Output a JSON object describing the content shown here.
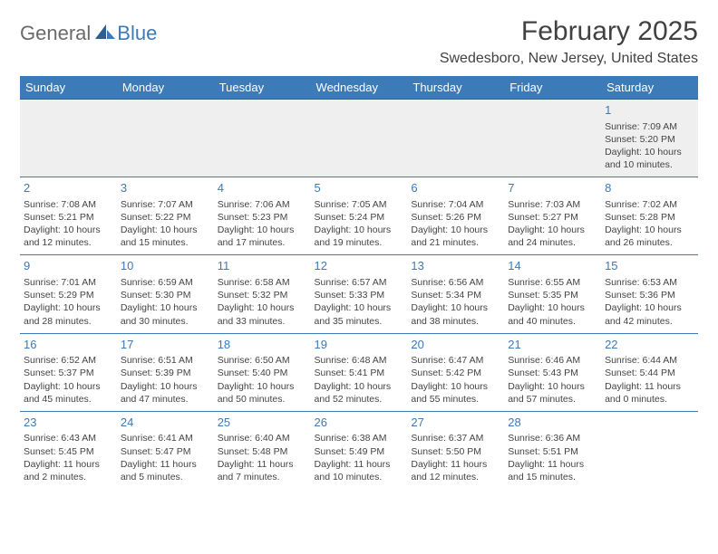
{
  "brand": {
    "part1": "General",
    "part2": "Blue"
  },
  "title": "February 2025",
  "location": "Swedesboro, New Jersey, United States",
  "colors": {
    "header_bg": "#3d7ab8",
    "header_text": "#ffffff",
    "daynum": "#3d7ab8",
    "body_text": "#444444",
    "row_border": "#3d7ab8",
    "first_row_bg": "#efefef",
    "page_bg": "#ffffff"
  },
  "weekdays": [
    "Sunday",
    "Monday",
    "Tuesday",
    "Wednesday",
    "Thursday",
    "Friday",
    "Saturday"
  ],
  "weeks": [
    [
      null,
      null,
      null,
      null,
      null,
      null,
      {
        "n": "1",
        "sunrise": "Sunrise: 7:09 AM",
        "sunset": "Sunset: 5:20 PM",
        "daylight": "Daylight: 10 hours and 10 minutes."
      }
    ],
    [
      {
        "n": "2",
        "sunrise": "Sunrise: 7:08 AM",
        "sunset": "Sunset: 5:21 PM",
        "daylight": "Daylight: 10 hours and 12 minutes."
      },
      {
        "n": "3",
        "sunrise": "Sunrise: 7:07 AM",
        "sunset": "Sunset: 5:22 PM",
        "daylight": "Daylight: 10 hours and 15 minutes."
      },
      {
        "n": "4",
        "sunrise": "Sunrise: 7:06 AM",
        "sunset": "Sunset: 5:23 PM",
        "daylight": "Daylight: 10 hours and 17 minutes."
      },
      {
        "n": "5",
        "sunrise": "Sunrise: 7:05 AM",
        "sunset": "Sunset: 5:24 PM",
        "daylight": "Daylight: 10 hours and 19 minutes."
      },
      {
        "n": "6",
        "sunrise": "Sunrise: 7:04 AM",
        "sunset": "Sunset: 5:26 PM",
        "daylight": "Daylight: 10 hours and 21 minutes."
      },
      {
        "n": "7",
        "sunrise": "Sunrise: 7:03 AM",
        "sunset": "Sunset: 5:27 PM",
        "daylight": "Daylight: 10 hours and 24 minutes."
      },
      {
        "n": "8",
        "sunrise": "Sunrise: 7:02 AM",
        "sunset": "Sunset: 5:28 PM",
        "daylight": "Daylight: 10 hours and 26 minutes."
      }
    ],
    [
      {
        "n": "9",
        "sunrise": "Sunrise: 7:01 AM",
        "sunset": "Sunset: 5:29 PM",
        "daylight": "Daylight: 10 hours and 28 minutes."
      },
      {
        "n": "10",
        "sunrise": "Sunrise: 6:59 AM",
        "sunset": "Sunset: 5:30 PM",
        "daylight": "Daylight: 10 hours and 30 minutes."
      },
      {
        "n": "11",
        "sunrise": "Sunrise: 6:58 AM",
        "sunset": "Sunset: 5:32 PM",
        "daylight": "Daylight: 10 hours and 33 minutes."
      },
      {
        "n": "12",
        "sunrise": "Sunrise: 6:57 AM",
        "sunset": "Sunset: 5:33 PM",
        "daylight": "Daylight: 10 hours and 35 minutes."
      },
      {
        "n": "13",
        "sunrise": "Sunrise: 6:56 AM",
        "sunset": "Sunset: 5:34 PM",
        "daylight": "Daylight: 10 hours and 38 minutes."
      },
      {
        "n": "14",
        "sunrise": "Sunrise: 6:55 AM",
        "sunset": "Sunset: 5:35 PM",
        "daylight": "Daylight: 10 hours and 40 minutes."
      },
      {
        "n": "15",
        "sunrise": "Sunrise: 6:53 AM",
        "sunset": "Sunset: 5:36 PM",
        "daylight": "Daylight: 10 hours and 42 minutes."
      }
    ],
    [
      {
        "n": "16",
        "sunrise": "Sunrise: 6:52 AM",
        "sunset": "Sunset: 5:37 PM",
        "daylight": "Daylight: 10 hours and 45 minutes."
      },
      {
        "n": "17",
        "sunrise": "Sunrise: 6:51 AM",
        "sunset": "Sunset: 5:39 PM",
        "daylight": "Daylight: 10 hours and 47 minutes."
      },
      {
        "n": "18",
        "sunrise": "Sunrise: 6:50 AM",
        "sunset": "Sunset: 5:40 PM",
        "daylight": "Daylight: 10 hours and 50 minutes."
      },
      {
        "n": "19",
        "sunrise": "Sunrise: 6:48 AM",
        "sunset": "Sunset: 5:41 PM",
        "daylight": "Daylight: 10 hours and 52 minutes."
      },
      {
        "n": "20",
        "sunrise": "Sunrise: 6:47 AM",
        "sunset": "Sunset: 5:42 PM",
        "daylight": "Daylight: 10 hours and 55 minutes."
      },
      {
        "n": "21",
        "sunrise": "Sunrise: 6:46 AM",
        "sunset": "Sunset: 5:43 PM",
        "daylight": "Daylight: 10 hours and 57 minutes."
      },
      {
        "n": "22",
        "sunrise": "Sunrise: 6:44 AM",
        "sunset": "Sunset: 5:44 PM",
        "daylight": "Daylight: 11 hours and 0 minutes."
      }
    ],
    [
      {
        "n": "23",
        "sunrise": "Sunrise: 6:43 AM",
        "sunset": "Sunset: 5:45 PM",
        "daylight": "Daylight: 11 hours and 2 minutes."
      },
      {
        "n": "24",
        "sunrise": "Sunrise: 6:41 AM",
        "sunset": "Sunset: 5:47 PM",
        "daylight": "Daylight: 11 hours and 5 minutes."
      },
      {
        "n": "25",
        "sunrise": "Sunrise: 6:40 AM",
        "sunset": "Sunset: 5:48 PM",
        "daylight": "Daylight: 11 hours and 7 minutes."
      },
      {
        "n": "26",
        "sunrise": "Sunrise: 6:38 AM",
        "sunset": "Sunset: 5:49 PM",
        "daylight": "Daylight: 11 hours and 10 minutes."
      },
      {
        "n": "27",
        "sunrise": "Sunrise: 6:37 AM",
        "sunset": "Sunset: 5:50 PM",
        "daylight": "Daylight: 11 hours and 12 minutes."
      },
      {
        "n": "28",
        "sunrise": "Sunrise: 6:36 AM",
        "sunset": "Sunset: 5:51 PM",
        "daylight": "Daylight: 11 hours and 15 minutes."
      },
      null
    ]
  ]
}
